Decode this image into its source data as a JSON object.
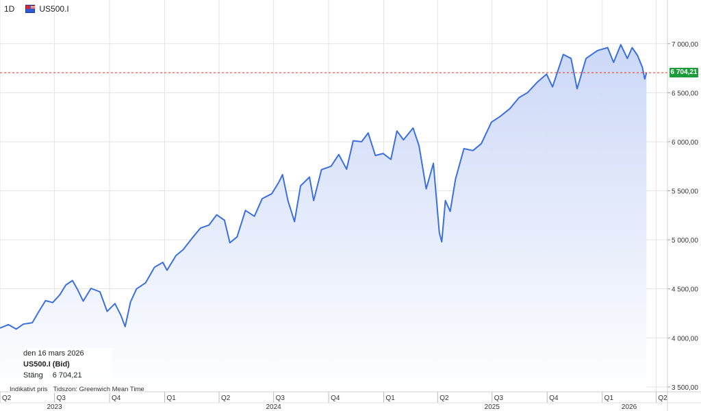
{
  "header": {
    "interval": "1D",
    "symbol": "US500.I"
  },
  "info": {
    "date": "den 16 mars 2026",
    "instrument": "US500.I (Bid)",
    "close_label": "Stäng",
    "close_value": "6 704,21",
    "indicative": "Indikativt pris",
    "timezone": "Tidszon: Greenwich Mean Time"
  },
  "colors": {
    "line": "#3b6fe0",
    "fill_top": "#c9d6f7",
    "fill_bottom": "#ffffff",
    "ref_line": "#d9342b",
    "badge": "#1a9c3a",
    "grid": "#e3e3e3"
  },
  "chart_data": {
    "type": "area",
    "ylim": [
      3450,
      7250
    ],
    "y_ticks": [
      {
        "value": 3500,
        "label": "3 500,00"
      },
      {
        "value": 4000,
        "label": "4 000,00"
      },
      {
        "value": 4500,
        "label": "4 500,00"
      },
      {
        "value": 5000,
        "label": "5 000,00"
      },
      {
        "value": 5500,
        "label": "5 500,00"
      },
      {
        "value": 6000,
        "label": "6 000,00"
      },
      {
        "value": 6500,
        "label": "6 500,00"
      },
      {
        "value": 7000,
        "label": "7 000,00"
      }
    ],
    "x_range": [
      "2023-04-01",
      "2026-04-20"
    ],
    "quarter_ticks": [
      {
        "date": "2023-04-01",
        "label": "Q2"
      },
      {
        "date": "2023-07-01",
        "label": "Q3"
      },
      {
        "date": "2023-10-01",
        "label": "Q4"
      },
      {
        "date": "2024-01-01",
        "label": "Q1"
      },
      {
        "date": "2024-04-01",
        "label": "Q2"
      },
      {
        "date": "2024-07-01",
        "label": "Q3"
      },
      {
        "date": "2024-10-01",
        "label": "Q4"
      },
      {
        "date": "2025-01-01",
        "label": "Q1"
      },
      {
        "date": "2025-04-01",
        "label": "Q2"
      },
      {
        "date": "2025-07-01",
        "label": "Q3"
      },
      {
        "date": "2025-10-01",
        "label": "Q4"
      },
      {
        "date": "2026-01-01",
        "label": "Q1"
      },
      {
        "date": "2026-04-01",
        "label": "Q2"
      }
    ],
    "year_ticks": [
      {
        "date": "2023-07-01",
        "label": "2023"
      },
      {
        "date": "2024-07-01",
        "label": "2024"
      },
      {
        "date": "2025-07-01",
        "label": "2025"
      },
      {
        "date": "2026-02-15",
        "label": "2026"
      }
    ],
    "last_price": {
      "value": 6704.21,
      "label": "6 704,21"
    },
    "series": [
      {
        "points": [
          [
            "2023-04-01",
            4100
          ],
          [
            "2023-04-15",
            4135
          ],
          [
            "2023-04-28",
            4090
          ],
          [
            "2023-05-10",
            4140
          ],
          [
            "2023-05-25",
            4155
          ],
          [
            "2023-06-05",
            4270
          ],
          [
            "2023-06-16",
            4380
          ],
          [
            "2023-06-28",
            4360
          ],
          [
            "2023-07-10",
            4440
          ],
          [
            "2023-07-20",
            4540
          ],
          [
            "2023-07-31",
            4585
          ],
          [
            "2023-08-08",
            4500
          ],
          [
            "2023-08-18",
            4375
          ],
          [
            "2023-08-31",
            4505
          ],
          [
            "2023-09-15",
            4470
          ],
          [
            "2023-09-27",
            4270
          ],
          [
            "2023-10-10",
            4350
          ],
          [
            "2023-10-20",
            4230
          ],
          [
            "2023-10-27",
            4115
          ],
          [
            "2023-11-05",
            4365
          ],
          [
            "2023-11-15",
            4500
          ],
          [
            "2023-11-30",
            4560
          ],
          [
            "2023-12-15",
            4720
          ],
          [
            "2023-12-29",
            4770
          ],
          [
            "2024-01-05",
            4690
          ],
          [
            "2024-01-20",
            4840
          ],
          [
            "2024-02-01",
            4900
          ],
          [
            "2024-02-15",
            5010
          ],
          [
            "2024-03-01",
            5120
          ],
          [
            "2024-03-15",
            5150
          ],
          [
            "2024-03-28",
            5255
          ],
          [
            "2024-04-10",
            5200
          ],
          [
            "2024-04-19",
            4970
          ],
          [
            "2024-05-01",
            5030
          ],
          [
            "2024-05-15",
            5300
          ],
          [
            "2024-05-30",
            5240
          ],
          [
            "2024-06-12",
            5420
          ],
          [
            "2024-06-28",
            5470
          ],
          [
            "2024-07-10",
            5590
          ],
          [
            "2024-07-16",
            5665
          ],
          [
            "2024-07-25",
            5400
          ],
          [
            "2024-08-05",
            5185
          ],
          [
            "2024-08-15",
            5550
          ],
          [
            "2024-08-30",
            5640
          ],
          [
            "2024-09-06",
            5400
          ],
          [
            "2024-09-19",
            5715
          ],
          [
            "2024-10-05",
            5750
          ],
          [
            "2024-10-18",
            5870
          ],
          [
            "2024-10-31",
            5720
          ],
          [
            "2024-11-11",
            6010
          ],
          [
            "2024-11-25",
            6000
          ],
          [
            "2024-12-06",
            6090
          ],
          [
            "2024-12-18",
            5860
          ],
          [
            "2024-12-31",
            5880
          ],
          [
            "2025-01-13",
            5820
          ],
          [
            "2025-01-23",
            6110
          ],
          [
            "2025-02-03",
            6020
          ],
          [
            "2025-02-19",
            6140
          ],
          [
            "2025-03-01",
            5960
          ],
          [
            "2025-03-13",
            5520
          ],
          [
            "2025-03-25",
            5780
          ],
          [
            "2025-04-04",
            5070
          ],
          [
            "2025-04-08",
            4980
          ],
          [
            "2025-04-14",
            5400
          ],
          [
            "2025-04-22",
            5290
          ],
          [
            "2025-05-01",
            5620
          ],
          [
            "2025-05-15",
            5930
          ],
          [
            "2025-05-30",
            5910
          ],
          [
            "2025-06-13",
            5980
          ],
          [
            "2025-06-30",
            6200
          ],
          [
            "2025-07-15",
            6260
          ],
          [
            "2025-07-31",
            6340
          ],
          [
            "2025-08-15",
            6450
          ],
          [
            "2025-08-29",
            6500
          ],
          [
            "2025-09-15",
            6610
          ],
          [
            "2025-09-30",
            6690
          ],
          [
            "2025-10-10",
            6560
          ],
          [
            "2025-10-28",
            6890
          ],
          [
            "2025-11-10",
            6850
          ],
          [
            "2025-11-20",
            6540
          ],
          [
            "2025-12-05",
            6850
          ],
          [
            "2025-12-24",
            6930
          ],
          [
            "2026-01-10",
            6960
          ],
          [
            "2026-01-20",
            6810
          ],
          [
            "2026-02-01",
            6990
          ],
          [
            "2026-02-12",
            6850
          ],
          [
            "2026-02-20",
            6960
          ],
          [
            "2026-03-01",
            6880
          ],
          [
            "2026-03-09",
            6760
          ],
          [
            "2026-03-13",
            6640
          ],
          [
            "2026-03-16",
            6704.21
          ]
        ]
      }
    ]
  }
}
